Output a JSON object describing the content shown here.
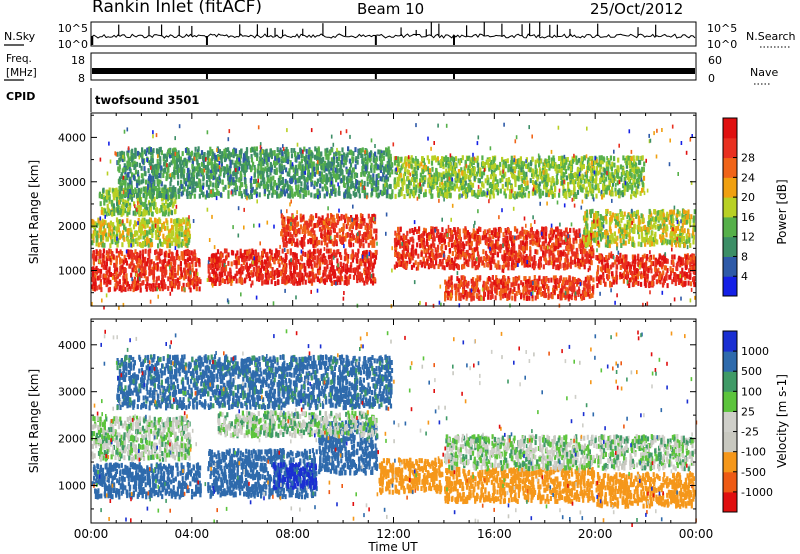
{
  "header": {
    "station": "Rankin Inlet (fitACF)",
    "beam": "Beam 10",
    "date": "25/Oct/2012"
  },
  "side_panels": {
    "nsky_label": "N.Sky",
    "nsearch_label": "N.Search",
    "freq_label_top": "Freq.",
    "freq_label_bottom": "[MHz]",
    "nave_label": "Nave",
    "cpid_label": "CPID",
    "cpid_value": "twofsound 3501",
    "noise_ticks": [
      "10^5",
      "10^0"
    ],
    "freq_ticks": [
      "18",
      "8"
    ],
    "nave_ticks": [
      "60",
      "0"
    ]
  },
  "colors": {
    "power_scale": [
      "#1420e6",
      "#2e5aa8",
      "#3c8e66",
      "#56b04a",
      "#b8d024",
      "#f0a010",
      "#f06418",
      "#e83020",
      "#e01010"
    ],
    "velocity_scale": [
      "#e00f0f",
      "#ee5a14",
      "#f5971a",
      "#c8c8c0",
      "#cfcfc9",
      "#5cc43c",
      "#3f9a66",
      "#2e6aac",
      "#1a2fd2"
    ]
  },
  "chart_data": [
    {
      "type": "heatmap",
      "name": "power",
      "ylabel": "Slant Range [km]",
      "xlim": [
        0,
        24
      ],
      "ylim": [
        200,
        4550
      ],
      "yticks": [
        1000,
        2000,
        3000,
        4000
      ],
      "colorbar": {
        "label": "Power [dB]",
        "range": [
          0,
          32
        ],
        "ticks": [
          "4",
          "8",
          "12",
          "16",
          "20",
          "24",
          "28"
        ]
      },
      "bands": [
        {
          "t0": 0.0,
          "t1": 4.4,
          "r0": 500,
          "r1": 1500,
          "value": 27
        },
        {
          "t0": 0.0,
          "t1": 4.0,
          "r0": 1500,
          "r1": 2200,
          "value": 16
        },
        {
          "t0": 0.3,
          "t1": 3.4,
          "r0": 2200,
          "r1": 2900,
          "value": 14
        },
        {
          "t0": 4.6,
          "t1": 11.4,
          "r0": 650,
          "r1": 1500,
          "value": 28
        },
        {
          "t0": 7.5,
          "t1": 11.4,
          "r0": 1500,
          "r1": 2300,
          "value": 26
        },
        {
          "t0": 12.0,
          "t1": 20.0,
          "r0": 1000,
          "r1": 2000,
          "value": 27
        },
        {
          "t0": 14.0,
          "t1": 20.0,
          "r0": 300,
          "r1": 900,
          "value": 26
        },
        {
          "t0": 20.0,
          "t1": 24.0,
          "r0": 600,
          "r1": 1400,
          "value": 27
        },
        {
          "t0": 19.5,
          "t1": 24.0,
          "r0": 1500,
          "r1": 2400,
          "value": 16
        },
        {
          "t0": 1.0,
          "t1": 12.0,
          "r0": 2600,
          "r1": 3800,
          "value": 10
        },
        {
          "t0": 12.0,
          "t1": 22.0,
          "r0": 2600,
          "r1": 3600,
          "value": 14
        }
      ]
    },
    {
      "type": "heatmap",
      "name": "velocity",
      "ylabel": "Slant Range [km]",
      "xlabel": "Time UT",
      "xlim": [
        0,
        24
      ],
      "ylim": [
        200,
        4550
      ],
      "yticks": [
        1000,
        2000,
        3000,
        4000
      ],
      "xticks": [
        "00:00",
        "04:00",
        "08:00",
        "12:00",
        "16:00",
        "20:00",
        "00:00"
      ],
      "colorbar": {
        "label": "Velocity [m s-1]",
        "ticks": [
          "-1000",
          "-500",
          "-100",
          "-25",
          "25",
          "100",
          "500",
          "1000"
        ]
      },
      "bands": [
        {
          "t0": 0.0,
          "t1": 4.4,
          "r0": 700,
          "r1": 1500,
          "value": 220
        },
        {
          "t0": 0.0,
          "t1": 4.0,
          "r0": 1500,
          "r1": 2500,
          "value": 0
        },
        {
          "t0": 4.6,
          "t1": 9.0,
          "r0": 700,
          "r1": 1800,
          "value": 250
        },
        {
          "t0": 7.2,
          "t1": 9.0,
          "r0": 900,
          "r1": 1500,
          "value": 700
        },
        {
          "t0": 9.0,
          "t1": 11.4,
          "r0": 1200,
          "r1": 2400,
          "value": 230
        },
        {
          "t0": 5.0,
          "t1": 11.4,
          "r0": 2000,
          "r1": 2600,
          "value": 0
        },
        {
          "t0": 11.4,
          "t1": 14.0,
          "r0": 800,
          "r1": 1600,
          "value": -250
        },
        {
          "t0": 14.0,
          "t1": 20.0,
          "r0": 600,
          "r1": 1400,
          "value": -250
        },
        {
          "t0": 14.0,
          "t1": 24.0,
          "r0": 1300,
          "r1": 2100,
          "value": 0
        },
        {
          "t0": 20.0,
          "t1": 24.0,
          "r0": 500,
          "r1": 1300,
          "value": -300
        },
        {
          "t0": 1.0,
          "t1": 12.0,
          "r0": 2600,
          "r1": 3800,
          "value": 150
        }
      ]
    }
  ]
}
